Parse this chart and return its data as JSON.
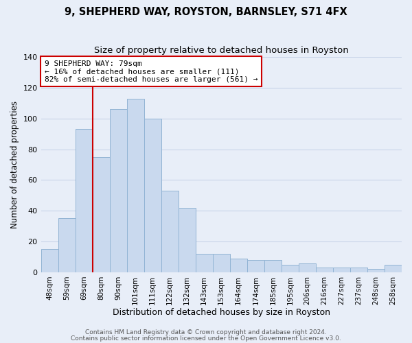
{
  "title": "9, SHEPHERD WAY, ROYSTON, BARNSLEY, S71 4FX",
  "subtitle": "Size of property relative to detached houses in Royston",
  "xlabel": "Distribution of detached houses by size in Royston",
  "ylabel": "Number of detached properties",
  "bar_labels": [
    "48sqm",
    "59sqm",
    "69sqm",
    "80sqm",
    "90sqm",
    "101sqm",
    "111sqm",
    "122sqm",
    "132sqm",
    "143sqm",
    "153sqm",
    "164sqm",
    "174sqm",
    "185sqm",
    "195sqm",
    "206sqm",
    "216sqm",
    "227sqm",
    "237sqm",
    "248sqm",
    "258sqm"
  ],
  "bar_values": [
    15,
    35,
    93,
    75,
    106,
    113,
    100,
    53,
    42,
    12,
    12,
    9,
    8,
    8,
    5,
    6,
    3,
    3,
    3,
    2,
    5
  ],
  "bar_color": "#c9d9ee",
  "bar_edge_color": "#92b4d4",
  "vline_x_idx": 3,
  "vline_color": "#cc0000",
  "ylim": [
    0,
    140
  ],
  "yticks": [
    0,
    20,
    40,
    60,
    80,
    100,
    120,
    140
  ],
  "annotation_text": "9 SHEPHERD WAY: 79sqm\n← 16% of detached houses are smaller (111)\n82% of semi-detached houses are larger (561) →",
  "annotation_box_color": "#ffffff",
  "annotation_box_edge": "#cc0000",
  "footer1": "Contains HM Land Registry data © Crown copyright and database right 2024.",
  "footer2": "Contains public sector information licensed under the Open Government Licence v3.0.",
  "title_fontsize": 10.5,
  "subtitle_fontsize": 9.5,
  "xlabel_fontsize": 9,
  "ylabel_fontsize": 8.5,
  "annotation_fontsize": 8,
  "footer_fontsize": 6.5,
  "tick_fontsize": 7.5,
  "ytick_fontsize": 8,
  "grid_color": "#c8d4e8",
  "bg_color": "#e8eef8"
}
